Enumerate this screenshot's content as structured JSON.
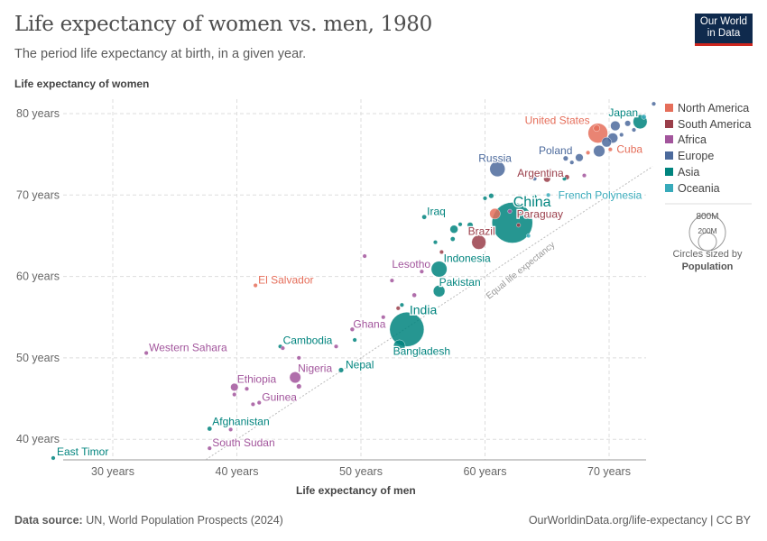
{
  "title": "Life expectancy of women vs. men, 1980",
  "subtitle": "The period life expectancy at birth, in a given year.",
  "logo": "Our World in Data",
  "footer": {
    "source_label": "Data source:",
    "source": "UN, World Population Prospects (2024)",
    "link": "OurWorldinData.org/life-expectancy | CC BY"
  },
  "size_legend": {
    "big": "800M",
    "small": "200M",
    "caption": "Circles sized by",
    "variable": "Population"
  },
  "chart_data": {
    "type": "scatter",
    "xlabel": "Life expectancy of men",
    "ylabel": "Life expectancy of women",
    "xlim": [
      25,
      74
    ],
    "ylim": [
      37,
      82
    ],
    "xticks": [
      30,
      40,
      50,
      60,
      70
    ],
    "yticks": [
      40,
      50,
      60,
      70,
      80
    ],
    "tick_suffix": " years",
    "grid": true,
    "reference_line": {
      "label": "Equal life expectancy"
    },
    "legend_position": "right",
    "regions": [
      {
        "name": "North America",
        "color": "#e56e5a"
      },
      {
        "name": "South America",
        "color": "#9a3e4a"
      },
      {
        "name": "Africa",
        "color": "#a2559c"
      },
      {
        "name": "Europe",
        "color": "#4c6a9c"
      },
      {
        "name": "Asia",
        "color": "#00847e"
      },
      {
        "name": "Oceania",
        "color": "#38aaba"
      }
    ],
    "points": [
      {
        "label": "Japan",
        "r": 4,
        "x": 72.5,
        "y": 79.0,
        "pop": 117
      },
      {
        "label": "United States",
        "r": 0,
        "x": 69.1,
        "y": 77.6,
        "pop": 230
      },
      {
        "label": "Cuba",
        "r": 0,
        "x": 70.1,
        "y": 75.6,
        "pop": 10
      },
      {
        "label": "Poland",
        "r": 3,
        "x": 67.6,
        "y": 74.6,
        "pop": 36
      },
      {
        "label": "Russia",
        "r": 3,
        "x": 61.0,
        "y": 73.2,
        "pop": 139
      },
      {
        "label": "Argentina",
        "r": 1,
        "x": 65.0,
        "y": 72.0,
        "pop": 28
      },
      {
        "label": "French Polynesia",
        "r": 5,
        "x": 65.1,
        "y": 70.0,
        "pop": 0.15
      },
      {
        "label": "China",
        "r": 4,
        "x": 62.2,
        "y": 66.6,
        "pop": 980
      },
      {
        "label": "Paraguay",
        "r": 1,
        "x": 62.7,
        "y": 66.3,
        "pop": 3
      },
      {
        "label": "Brazil",
        "r": 1,
        "x": 59.5,
        "y": 64.2,
        "pop": 120
      },
      {
        "label": "Iraq",
        "r": 4,
        "x": 55.1,
        "y": 67.3,
        "pop": 13
      },
      {
        "label": "Indonesia",
        "r": 4,
        "x": 56.3,
        "y": 60.9,
        "pop": 147
      },
      {
        "label": "Lesotho",
        "r": 2,
        "x": 54.9,
        "y": 60.6,
        "pop": 1.4
      },
      {
        "label": "Pakistan",
        "r": 4,
        "x": 56.3,
        "y": 58.2,
        "pop": 80
      },
      {
        "label": "India",
        "r": 4,
        "x": 53.7,
        "y": 53.5,
        "pop": 700
      },
      {
        "label": "Bangladesh",
        "r": 4,
        "x": 53.1,
        "y": 51.5,
        "pop": 80
      },
      {
        "label": "Ghana",
        "r": 2,
        "x": 49.3,
        "y": 53.5,
        "pop": 11
      },
      {
        "label": "El Salvador",
        "r": 0,
        "x": 41.5,
        "y": 58.9,
        "pop": 4.5
      },
      {
        "label": "Western Sahara",
        "r": 2,
        "x": 32.7,
        "y": 50.6,
        "pop": 0.15
      },
      {
        "label": "Cambodia",
        "r": 4,
        "x": 43.5,
        "y": 51.4,
        "pop": 6.7
      },
      {
        "label": "Nigeria",
        "r": 2,
        "x": 44.7,
        "y": 47.6,
        "pop": 75
      },
      {
        "label": "Nepal",
        "r": 4,
        "x": 48.4,
        "y": 48.5,
        "pop": 15
      },
      {
        "label": "Ethiopia",
        "r": 2,
        "x": 39.8,
        "y": 46.4,
        "pop": 35
      },
      {
        "label": "Guinea",
        "r": 2,
        "x": 41.8,
        "y": 44.5,
        "pop": 4.5
      },
      {
        "label": "Afghanistan",
        "r": 4,
        "x": 37.8,
        "y": 41.3,
        "pop": 13
      },
      {
        "label": "South Sudan",
        "r": 2,
        "x": 37.8,
        "y": 38.9,
        "pop": 4
      },
      {
        "label": "East Timor",
        "r": 4,
        "x": 25.2,
        "y": 37.7,
        "pop": 0.6
      },
      {
        "r": 3,
        "x": 70.5,
        "y": 78.5,
        "pop": 55
      },
      {
        "r": 3,
        "x": 71.5,
        "y": 78.8,
        "pop": 20
      },
      {
        "r": 3,
        "x": 70.3,
        "y": 77.0,
        "pop": 60
      },
      {
        "r": 3,
        "x": 69.8,
        "y": 76.5,
        "pop": 57
      },
      {
        "r": 3,
        "x": 71.0,
        "y": 77.4,
        "pop": 8
      },
      {
        "r": 3,
        "x": 72.0,
        "y": 78.0,
        "pop": 8
      },
      {
        "r": 3,
        "x": 73.6,
        "y": 81.2,
        "pop": 4
      },
      {
        "r": 0,
        "x": 69.0,
        "y": 78.2,
        "pop": 24
      },
      {
        "r": 5,
        "x": 72.8,
        "y": 79.6,
        "pop": 14
      },
      {
        "r": 3,
        "x": 69.2,
        "y": 75.4,
        "pop": 78
      },
      {
        "r": 3,
        "x": 67.0,
        "y": 74.0,
        "pop": 10
      },
      {
        "r": 3,
        "x": 66.5,
        "y": 74.5,
        "pop": 15
      },
      {
        "r": 0,
        "x": 68.3,
        "y": 75.2,
        "pop": 5
      },
      {
        "r": 0,
        "x": 66.0,
        "y": 72.6,
        "pop": 3
      },
      {
        "r": 1,
        "x": 66.6,
        "y": 72.2,
        "pop": 15
      },
      {
        "r": 4,
        "x": 66.4,
        "y": 72.0,
        "pop": 2
      },
      {
        "r": 2,
        "x": 68.0,
        "y": 72.4,
        "pop": 1
      },
      {
        "r": 4,
        "x": 60.5,
        "y": 69.9,
        "pop": 15
      },
      {
        "r": 4,
        "x": 60.0,
        "y": 69.6,
        "pop": 5
      },
      {
        "r": 0,
        "x": 60.8,
        "y": 67.7,
        "pop": 67
      },
      {
        "r": 2,
        "x": 62.0,
        "y": 68.0,
        "pop": 3
      },
      {
        "r": 4,
        "x": 57.5,
        "y": 65.8,
        "pop": 38
      },
      {
        "r": 4,
        "x": 58.0,
        "y": 66.4,
        "pop": 7
      },
      {
        "r": 4,
        "x": 58.8,
        "y": 66.3,
        "pop": 20
      },
      {
        "r": 4,
        "x": 57.4,
        "y": 64.6,
        "pop": 13
      },
      {
        "r": 1,
        "x": 56.5,
        "y": 63.0,
        "pop": 6
      },
      {
        "r": 2,
        "x": 50.3,
        "y": 62.5,
        "pop": 1
      },
      {
        "r": 2,
        "x": 52.5,
        "y": 59.5,
        "pop": 5
      },
      {
        "r": 2,
        "x": 54.3,
        "y": 57.7,
        "pop": 12
      },
      {
        "r": 4,
        "x": 53.3,
        "y": 56.5,
        "pop": 8
      },
      {
        "r": 1,
        "x": 53.0,
        "y": 56.1,
        "pop": 3
      },
      {
        "r": 2,
        "x": 51.8,
        "y": 55.0,
        "pop": 2
      },
      {
        "r": 4,
        "x": 49.5,
        "y": 52.2,
        "pop": 4
      },
      {
        "r": 2,
        "x": 48.0,
        "y": 51.4,
        "pop": 8
      },
      {
        "r": 2,
        "x": 45.0,
        "y": 50.0,
        "pop": 2
      },
      {
        "r": 2,
        "x": 45.0,
        "y": 46.5,
        "pop": 15
      },
      {
        "r": 2,
        "x": 40.8,
        "y": 46.2,
        "pop": 3
      },
      {
        "r": 2,
        "x": 39.8,
        "y": 45.5,
        "pop": 2
      },
      {
        "r": 2,
        "x": 41.3,
        "y": 44.3,
        "pop": 3
      },
      {
        "r": 2,
        "x": 39.5,
        "y": 41.2,
        "pop": 1
      },
      {
        "r": 2,
        "x": 43.7,
        "y": 51.2,
        "pop": 2
      },
      {
        "r": 4,
        "x": 56.0,
        "y": 64.2,
        "pop": 2
      },
      {
        "r": 5,
        "x": 63.5,
        "y": 65.0,
        "pop": 0.5
      },
      {
        "r": 4,
        "x": 64.0,
        "y": 69.8,
        "pop": 3
      },
      {
        "r": 3,
        "x": 64.0,
        "y": 72.0,
        "pop": 10
      }
    ]
  }
}
